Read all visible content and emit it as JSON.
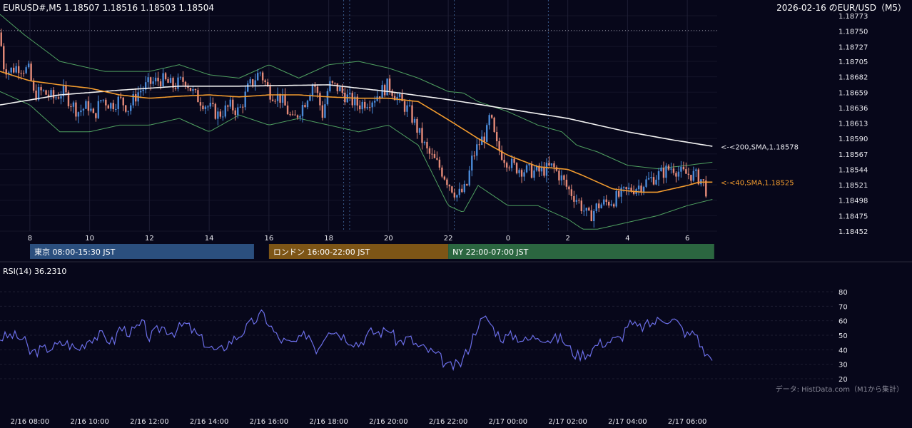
{
  "header": {
    "instrument": "EURUSD#,M5",
    "ohlc": "1.18507 1.18516 1.18503 1.18504",
    "chart_title": "2026-02-16 のEUR/USD（M5）"
  },
  "sessions": [
    {
      "label": "東京 08:00-15:30 JST",
      "color": "#2b4f7e"
    },
    {
      "label": "ロンドン 16:00-22:00 JST",
      "color": "#7d5516"
    },
    {
      "label": "NY 22:00-07:00 JST",
      "color": "#2b6640"
    }
  ],
  "rsi_panel": {
    "title": "RSI(14) 36.2310",
    "source_note": "データ: HistData.com（M1から集計）"
  },
  "colors": {
    "background": "#07071a",
    "bull": "#4a8ad8",
    "bear": "#e58a78",
    "sma40": "#f29b2e",
    "sma200": "#f2f2f2",
    "bollinger": "#4fa060",
    "rsi": "#6b6ee8"
  },
  "chart_data": [
    {
      "type": "candlestick",
      "series": [
        {
          "name": "<-<200,SMA,1.18578",
          "indicator": "SMA",
          "period": 200,
          "last": 1.18578
        },
        {
          "name": "<-<40,SMA,1.18525",
          "indicator": "SMA",
          "period": 40,
          "last": 1.18525
        }
      ],
      "ylim": [
        1.18452,
        1.18773
      ],
      "y_ticks": [
        "1.18773",
        "1.18750",
        "1.18727",
        "1.18705",
        "1.18682",
        "1.18659",
        "1.18636",
        "1.18613",
        "1.18590",
        "1.18567",
        "1.18544",
        "1.18521",
        "1.18498",
        "1.18475",
        "1.18452"
      ],
      "x_ticks": [
        "8",
        "10",
        "12",
        "14",
        "16",
        "18",
        "20",
        "22",
        "0",
        "2",
        "4",
        "6"
      ],
      "x_tick_hours": [
        8,
        10,
        12,
        14,
        16,
        18,
        20,
        22,
        24,
        26,
        28,
        30
      ],
      "xlim_hours": [
        7.0,
        31.0
      ],
      "ref_level": 1.18751,
      "vertical_grid": "dotted",
      "close_path": [
        [
          7.0,
          1.18748
        ],
        [
          7.1,
          1.187
        ],
        [
          7.3,
          1.1869
        ],
        [
          7.6,
          1.18698
        ],
        [
          8.0,
          1.1869
        ],
        [
          8.1,
          1.18655
        ],
        [
          8.4,
          1.1866
        ],
        [
          8.8,
          1.1865
        ],
        [
          9.1,
          1.1866
        ],
        [
          9.6,
          1.1863
        ],
        [
          10.0,
          1.1864
        ],
        [
          10.1,
          1.18618
        ],
        [
          10.4,
          1.1865
        ],
        [
          10.7,
          1.1864
        ],
        [
          11.0,
          1.18648
        ],
        [
          11.3,
          1.18635
        ],
        [
          11.6,
          1.18658
        ],
        [
          12.0,
          1.18672
        ],
        [
          12.4,
          1.18678
        ],
        [
          12.8,
          1.18668
        ],
        [
          13.2,
          1.18678
        ],
        [
          13.5,
          1.18655
        ],
        [
          13.9,
          1.1864
        ],
        [
          14.3,
          1.18625
        ],
        [
          14.7,
          1.18638
        ],
        [
          15.0,
          1.1863
        ],
        [
          15.3,
          1.18665
        ],
        [
          15.7,
          1.1869
        ],
        [
          16.0,
          1.1866
        ],
        [
          16.4,
          1.1865
        ],
        [
          16.8,
          1.18615
        ],
        [
          17.2,
          1.18645
        ],
        [
          17.5,
          1.18675
        ],
        [
          17.8,
          1.18625
        ],
        [
          18.0,
          1.1867
        ],
        [
          18.3,
          1.18665
        ],
        [
          18.7,
          1.18648
        ],
        [
          19.0,
          1.1864
        ],
        [
          19.5,
          1.1865
        ],
        [
          20.0,
          1.1867
        ],
        [
          20.3,
          1.1865
        ],
        [
          20.7,
          1.1863
        ],
        [
          21.0,
          1.186
        ],
        [
          21.3,
          1.1857
        ],
        [
          21.7,
          1.18548
        ],
        [
          22.0,
          1.18525
        ],
        [
          22.3,
          1.18505
        ],
        [
          22.6,
          1.18515
        ],
        [
          22.8,
          1.1856
        ],
        [
          23.0,
          1.1858
        ],
        [
          23.3,
          1.186
        ],
        [
          23.4,
          1.18625
        ],
        [
          23.6,
          1.1858
        ],
        [
          23.9,
          1.1856
        ],
        [
          24.2,
          1.18548
        ],
        [
          24.6,
          1.18542
        ],
        [
          25.0,
          1.1854
        ],
        [
          25.5,
          1.18548
        ],
        [
          25.8,
          1.1853
        ],
        [
          26.0,
          1.18515
        ],
        [
          26.3,
          1.185
        ],
        [
          26.7,
          1.18472
        ],
        [
          27.0,
          1.1849
        ],
        [
          27.5,
          1.18498
        ],
        [
          28.0,
          1.18512
        ],
        [
          28.4,
          1.1852
        ],
        [
          28.8,
          1.1853
        ],
        [
          29.2,
          1.1854
        ],
        [
          29.5,
          1.18548
        ],
        [
          29.8,
          1.18538
        ],
        [
          30.2,
          1.18536
        ],
        [
          30.5,
          1.18528
        ],
        [
          30.7,
          1.18505
        ]
      ],
      "sma40_path": [
        [
          7.0,
          1.1869
        ],
        [
          8.0,
          1.18676
        ],
        [
          9.0,
          1.1867
        ],
        [
          10.0,
          1.18665
        ],
        [
          11.0,
          1.18655
        ],
        [
          12.0,
          1.1865
        ],
        [
          13.0,
          1.18653
        ],
        [
          14.0,
          1.18655
        ],
        [
          15.0,
          1.18652
        ],
        [
          16.0,
          1.18655
        ],
        [
          17.0,
          1.18655
        ],
        [
          18.0,
          1.18652
        ],
        [
          19.0,
          1.1865
        ],
        [
          20.0,
          1.1865
        ],
        [
          21.0,
          1.18645
        ],
        [
          22.0,
          1.18618
        ],
        [
          23.0,
          1.1859
        ],
        [
          24.0,
          1.18565
        ],
        [
          25.0,
          1.18548
        ],
        [
          26.0,
          1.18544
        ],
        [
          26.5,
          1.18535
        ],
        [
          27.0,
          1.18525
        ],
        [
          27.5,
          1.18515
        ],
        [
          28.0,
          1.18512
        ],
        [
          28.5,
          1.1851
        ],
        [
          29.0,
          1.1851
        ],
        [
          29.5,
          1.18515
        ],
        [
          30.0,
          1.1852
        ],
        [
          30.4,
          1.18525
        ],
        [
          30.9,
          1.18525
        ]
      ],
      "sma200_path": [
        [
          7.0,
          1.1864
        ],
        [
          9.0,
          1.18655
        ],
        [
          11.0,
          1.18662
        ],
        [
          13.0,
          1.18668
        ],
        [
          15.0,
          1.18668
        ],
        [
          18.0,
          1.1867
        ],
        [
          20.0,
          1.1866
        ],
        [
          22.0,
          1.18648
        ],
        [
          24.0,
          1.18634
        ],
        [
          26.0,
          1.1862
        ],
        [
          28.0,
          1.186
        ],
        [
          29.5,
          1.18588
        ],
        [
          30.9,
          1.18578
        ]
      ],
      "bb_upper_path": [
        [
          7.0,
          1.18775
        ],
        [
          7.8,
          1.18745
        ],
        [
          9.0,
          1.18705
        ],
        [
          10.5,
          1.1869
        ],
        [
          12.0,
          1.1869
        ],
        [
          13.0,
          1.187
        ],
        [
          14.0,
          1.18685
        ],
        [
          15.0,
          1.1868
        ],
        [
          16.0,
          1.187
        ],
        [
          17.0,
          1.1868
        ],
        [
          18.0,
          1.187
        ],
        [
          19.0,
          1.18705
        ],
        [
          20.0,
          1.18695
        ],
        [
          21.0,
          1.1868
        ],
        [
          22.0,
          1.1866
        ],
        [
          22.5,
          1.18658
        ],
        [
          23.0,
          1.18645
        ],
        [
          24.0,
          1.1863
        ],
        [
          25.0,
          1.1861
        ],
        [
          25.8,
          1.186
        ],
        [
          26.3,
          1.1858
        ],
        [
          27.0,
          1.1857
        ],
        [
          28.0,
          1.1855
        ],
        [
          29.0,
          1.18545
        ],
        [
          30.0,
          1.1855
        ],
        [
          30.9,
          1.18555
        ]
      ],
      "bb_lower_path": [
        [
          7.0,
          1.1866
        ],
        [
          8.0,
          1.1864
        ],
        [
          9.0,
          1.186
        ],
        [
          10.0,
          1.186
        ],
        [
          11.0,
          1.1861
        ],
        [
          12.0,
          1.1861
        ],
        [
          13.0,
          1.1862
        ],
        [
          14.0,
          1.186
        ],
        [
          15.0,
          1.18625
        ],
        [
          16.0,
          1.1861
        ],
        [
          17.0,
          1.1862
        ],
        [
          18.0,
          1.1861
        ],
        [
          19.0,
          1.186
        ],
        [
          20.0,
          1.1861
        ],
        [
          21.0,
          1.1858
        ],
        [
          22.0,
          1.1849
        ],
        [
          22.5,
          1.1848
        ],
        [
          23.0,
          1.1852
        ],
        [
          24.0,
          1.1849
        ],
        [
          25.0,
          1.1849
        ],
        [
          26.0,
          1.1847
        ],
        [
          26.5,
          1.18455
        ],
        [
          27.0,
          1.18455
        ],
        [
          28.0,
          1.18465
        ],
        [
          29.0,
          1.18475
        ],
        [
          30.0,
          1.1849
        ],
        [
          30.9,
          1.185
        ]
      ],
      "session_lines_hours": [
        18.5,
        18.7,
        22.2,
        25.35
      ]
    },
    {
      "type": "line",
      "title": "RSI(14) 36.2310",
      "ylim": [
        20,
        80
      ],
      "y_ticks": [
        "80",
        "70",
        "60",
        "50",
        "40",
        "30",
        "20"
      ],
      "x_ticks": [
        "2/16 08:00",
        "2/16 10:00",
        "2/16 12:00",
        "2/16 14:00",
        "2/16 16:00",
        "2/16 18:00",
        "2/16 20:00",
        "2/16 22:00",
        "2/17 00:00",
        "2/17 02:00",
        "2/17 04:00",
        "2/17 06:00"
      ],
      "x_tick_hours": [
        8,
        10,
        12,
        14,
        16,
        18,
        20,
        22,
        24,
        26,
        28,
        30
      ],
      "xlim_hours": [
        7.0,
        31.0
      ],
      "rsi_path": [
        [
          7.0,
          48
        ],
        [
          7.4,
          50
        ],
        [
          7.8,
          47
        ],
        [
          8.0,
          38
        ],
        [
          8.4,
          40
        ],
        [
          8.8,
          42
        ],
        [
          9.2,
          45
        ],
        [
          9.6,
          40
        ],
        [
          10.0,
          48
        ],
        [
          10.4,
          50
        ],
        [
          10.8,
          45
        ],
        [
          11.0,
          55
        ],
        [
          11.4,
          52
        ],
        [
          11.8,
          58
        ],
        [
          12.0,
          48
        ],
        [
          12.4,
          56
        ],
        [
          12.8,
          52
        ],
        [
          13.2,
          58
        ],
        [
          13.6,
          50
        ],
        [
          14.0,
          42
        ],
        [
          14.3,
          38
        ],
        [
          14.6,
          44
        ],
        [
          15.0,
          50
        ],
        [
          15.4,
          58
        ],
        [
          15.8,
          65
        ],
        [
          16.0,
          58
        ],
        [
          16.3,
          48
        ],
        [
          16.7,
          44
        ],
        [
          17.0,
          46
        ],
        [
          17.3,
          52
        ],
        [
          17.6,
          40
        ],
        [
          18.0,
          55
        ],
        [
          18.3,
          52
        ],
        [
          18.6,
          48
        ],
        [
          19.0,
          44
        ],
        [
          19.4,
          52
        ],
        [
          19.8,
          52
        ],
        [
          20.0,
          55
        ],
        [
          20.3,
          45
        ],
        [
          20.7,
          48
        ],
        [
          21.0,
          42
        ],
        [
          21.3,
          40
        ],
        [
          21.7,
          35
        ],
        [
          22.0,
          28
        ],
        [
          22.4,
          30
        ],
        [
          22.7,
          42
        ],
        [
          23.0,
          58
        ],
        [
          23.3,
          62
        ],
        [
          23.5,
          55
        ],
        [
          23.8,
          48
        ],
        [
          24.2,
          50
        ],
        [
          24.6,
          46
        ],
        [
          25.0,
          50
        ],
        [
          25.4,
          47
        ],
        [
          25.8,
          48
        ],
        [
          26.0,
          42
        ],
        [
          26.3,
          36
        ],
        [
          26.7,
          38
        ],
        [
          27.0,
          44
        ],
        [
          27.4,
          46
        ],
        [
          27.8,
          48
        ],
        [
          28.0,
          58
        ],
        [
          28.4,
          55
        ],
        [
          28.8,
          58
        ],
        [
          29.2,
          62
        ],
        [
          29.6,
          60
        ],
        [
          30.0,
          50
        ],
        [
          30.3,
          52
        ],
        [
          30.5,
          40
        ],
        [
          30.7,
          35
        ],
        [
          30.9,
          37
        ]
      ]
    }
  ]
}
